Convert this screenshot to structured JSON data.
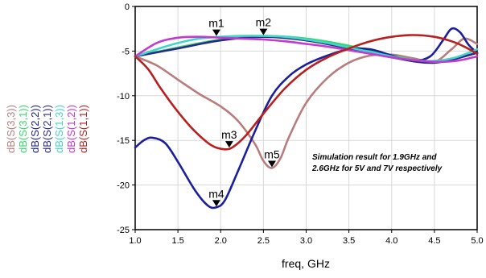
{
  "chart_data": {
    "type": "line",
    "xlabel": "freq, GHz",
    "ylabel": "",
    "xlim": [
      1.0,
      5.0
    ],
    "ylim": [
      -25,
      0
    ],
    "xticks": [
      "1.0",
      "1.5",
      "2.0",
      "2.5",
      "3.0",
      "3.5",
      "4.0",
      "4.5",
      "5.0"
    ],
    "yticks": [
      "0",
      "-5",
      "-10",
      "-15",
      "-20",
      "-25"
    ],
    "grid": true,
    "legend_placement": "left-vertical",
    "annotation": [
      "Simulation result for 1.9GHz and",
      "2.6GHz for 5V and 7V respectively"
    ],
    "series": [
      {
        "name": "dB(S(3,3))",
        "color": "#b97d7d",
        "x": [
          1.0,
          1.25,
          1.5,
          1.75,
          2.0,
          2.2,
          2.4,
          2.5,
          2.6,
          2.7,
          2.8,
          3.0,
          3.25,
          3.5,
          3.75,
          4.0,
          4.25,
          4.5,
          4.7,
          4.85,
          5.0
        ],
        "y": [
          -5.6,
          -6.6,
          -8.2,
          -9.8,
          -11.2,
          -12.8,
          -15.4,
          -17.3,
          -18.1,
          -17.0,
          -14.6,
          -10.8,
          -8.0,
          -6.3,
          -5.5,
          -5.4,
          -5.8,
          -6.2,
          -4.8,
          -3.6,
          -4.2
        ]
      },
      {
        "name": "dB(S(3,1))",
        "color": "#39d66b",
        "x": [
          1.0,
          1.5,
          2.0,
          2.5,
          3.0,
          3.5,
          4.0,
          4.5,
          5.0
        ],
        "y": [
          -5.6,
          -4.6,
          -3.7,
          -3.3,
          -3.6,
          -4.4,
          -5.5,
          -6.2,
          -5.2
        ]
      },
      {
        "name": "dB(S(2,2))",
        "color": "#1a1f9c",
        "x": [
          1.0,
          1.1,
          1.2,
          1.35,
          1.5,
          1.7,
          1.85,
          1.95,
          2.05,
          2.2,
          2.4,
          2.6,
          2.8,
          3.0,
          3.25,
          3.5,
          3.75,
          4.0,
          4.25,
          4.45,
          4.6,
          4.7,
          4.8,
          4.9,
          5.0
        ],
        "y": [
          -15.8,
          -15.0,
          -14.7,
          -15.3,
          -17.4,
          -20.6,
          -22.3,
          -22.5,
          -21.7,
          -18.5,
          -14.0,
          -10.0,
          -7.8,
          -6.5,
          -5.5,
          -4.8,
          -4.8,
          -5.5,
          -6.1,
          -5.6,
          -3.8,
          -2.5,
          -2.9,
          -4.3,
          -5.2
        ]
      },
      {
        "name": "dB(S(2,1))",
        "color": "#2a2a8a",
        "x": [
          1.0,
          1.5,
          2.0,
          2.5,
          3.0,
          3.5,
          4.0,
          4.5,
          5.0
        ],
        "y": [
          -5.6,
          -4.7,
          -3.8,
          -3.4,
          -3.8,
          -4.7,
          -5.7,
          -6.3,
          -5.2
        ]
      },
      {
        "name": "dB(S(1,3))",
        "color": "#40d6c8",
        "x": [
          1.0,
          1.25,
          1.5,
          1.75,
          2.0,
          2.25,
          2.5,
          2.75,
          3.0,
          3.25,
          3.5,
          3.75,
          4.0,
          4.25,
          4.5,
          4.75,
          5.0
        ],
        "y": [
          -5.6,
          -4.8,
          -4.1,
          -3.6,
          -3.4,
          -3.3,
          -3.3,
          -3.4,
          -3.7,
          -4.1,
          -4.6,
          -5.1,
          -5.6,
          -6.0,
          -6.1,
          -5.7,
          -4.8
        ]
      },
      {
        "name": "dB(S(1,2))",
        "color": "#c33ad0",
        "x": [
          1.0,
          1.25,
          1.5,
          1.75,
          2.0,
          2.25,
          2.5,
          2.75,
          3.0,
          3.25,
          3.5,
          3.75,
          4.0,
          4.25,
          4.5,
          4.75,
          5.0
        ],
        "y": [
          -5.6,
          -4.1,
          -3.5,
          -3.4,
          -3.5,
          -3.6,
          -3.7,
          -3.9,
          -4.2,
          -4.5,
          -4.9,
          -5.3,
          -5.7,
          -6.0,
          -6.2,
          -6.1,
          -5.6
        ]
      },
      {
        "name": "dB(S(1,1))",
        "color": "#b81f1f",
        "x": [
          1.0,
          1.15,
          1.3,
          1.5,
          1.7,
          1.9,
          2.05,
          2.15,
          2.3,
          2.5,
          2.75,
          3.0,
          3.25,
          3.5,
          3.75,
          4.0,
          4.25,
          4.5,
          4.7,
          4.85,
          5.0
        ],
        "y": [
          -5.6,
          -7.0,
          -9.2,
          -11.8,
          -14.0,
          -15.6,
          -16.0,
          -15.7,
          -14.4,
          -12.0,
          -9.2,
          -7.1,
          -5.7,
          -4.7,
          -3.9,
          -3.4,
          -3.2,
          -3.4,
          -3.9,
          -4.5,
          -5.3
        ]
      }
    ],
    "markers": [
      {
        "label": "m1",
        "x": 1.95,
        "y": -3.4
      },
      {
        "label": "m2",
        "x": 2.5,
        "y": -3.3
      },
      {
        "label": "m3",
        "x": 2.1,
        "y": -15.9
      },
      {
        "label": "m4",
        "x": 1.95,
        "y": -22.5
      },
      {
        "label": "m5",
        "x": 2.6,
        "y": -18.1
      }
    ]
  }
}
